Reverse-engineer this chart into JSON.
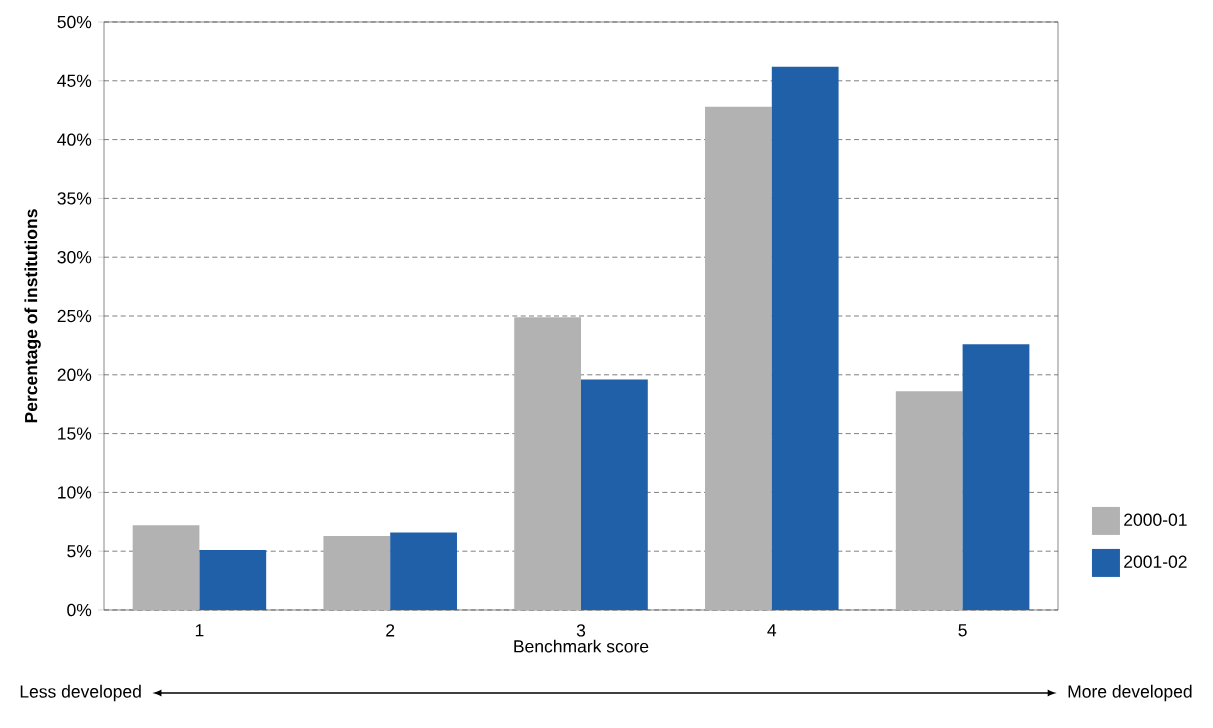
{
  "chart_data": {
    "type": "bar",
    "xlabel": "Benchmark score",
    "ylabel": "Percentage of institutions",
    "categories": [
      "1",
      "2",
      "3",
      "4",
      "5"
    ],
    "series": [
      {
        "name": "2000-01",
        "color": "#b2b2b2",
        "values": [
          7.2,
          6.3,
          24.9,
          42.8,
          18.6
        ]
      },
      {
        "name": "2001-02",
        "color": "#2060a8",
        "values": [
          5.1,
          6.6,
          19.6,
          46.2,
          22.6
        ]
      }
    ],
    "ylim": [
      0,
      50
    ],
    "yticks": [
      {
        "value": 0,
        "label": "0%"
      },
      {
        "value": 5,
        "label": "5%"
      },
      {
        "value": 10,
        "label": "10%"
      },
      {
        "value": 15,
        "label": "15%"
      },
      {
        "value": 20,
        "label": "20%"
      },
      {
        "value": 25,
        "label": "25%"
      },
      {
        "value": 30,
        "label": "30%"
      },
      {
        "value": 35,
        "label": "35%"
      },
      {
        "value": 40,
        "label": "40%"
      },
      {
        "value": 45,
        "label": "45%"
      },
      {
        "value": 50,
        "label": "50%"
      }
    ],
    "grid": "y",
    "legend": "right",
    "annotations": [
      "Less developed",
      "More developed"
    ]
  }
}
